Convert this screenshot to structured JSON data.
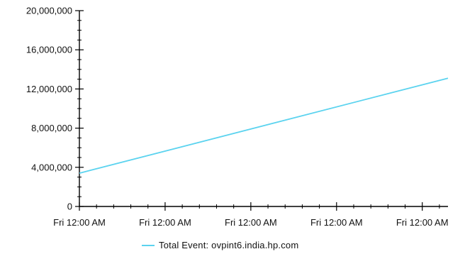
{
  "chart_data": {
    "type": "line",
    "x": [
      "Fri 12:00 AM",
      "Fri 12:00 AM",
      "Fri 12:00 AM",
      "Fri 12:00 AM",
      "Fri 12:00 AM"
    ],
    "x_range": [
      0,
      4.3
    ],
    "series": [
      {
        "name": "Total Event:  ovpint6.india.hp.com",
        "x": [
          0,
          4.3
        ],
        "values": [
          3400000,
          13100000
        ],
        "color": "#5bd3ef"
      }
    ],
    "ylim": [
      0,
      20000000
    ],
    "yticks": [
      "0",
      "4,000,000",
      "8,000,000",
      "12,000,000",
      "16,000,000",
      "20,000,000"
    ],
    "ytick_values": [
      0,
      4000000,
      8000000,
      12000000,
      16000000,
      20000000
    ],
    "ylabel": "",
    "xlabel": "",
    "grid": false,
    "legend_position": "bottom"
  }
}
